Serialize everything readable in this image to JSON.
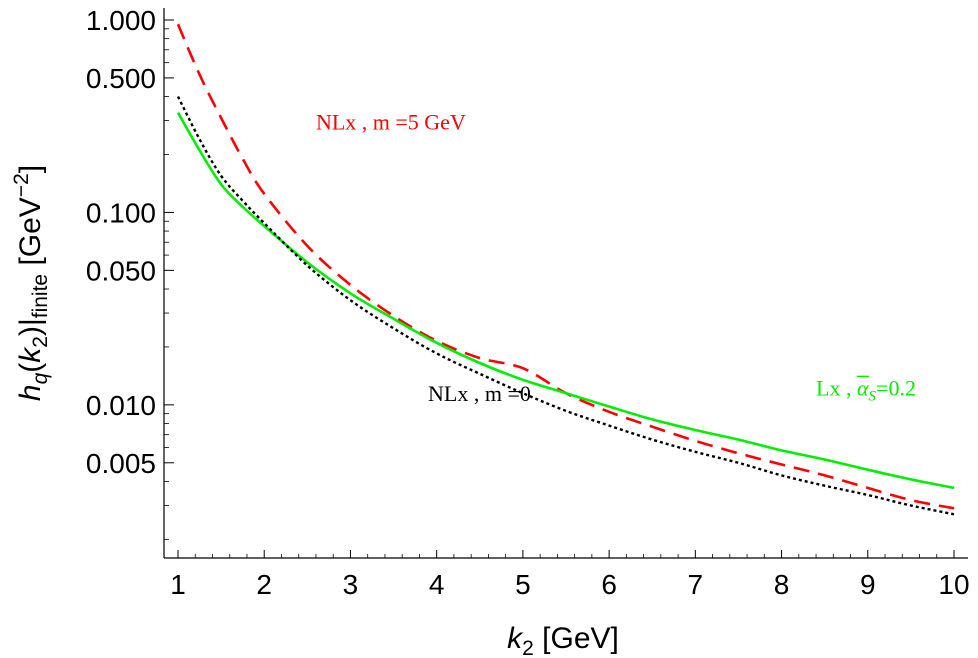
{
  "chart_data": {
    "type": "line",
    "title": "",
    "xlabel": {
      "var": "k",
      "sub": "2",
      "unit": " [GeV]"
    },
    "ylabel": {
      "var": "h",
      "sub_q": "q",
      "arg_var": "k",
      "arg_sub": "2",
      "finite_sub": "finite",
      "unit": " [GeV",
      "unit_exp": "−2",
      "unit_close": "]"
    },
    "x_range": [
      1,
      10
    ],
    "y_range": [
      0.0016,
      1.0
    ],
    "y_scale": "log",
    "grid": false,
    "x_ticks": [
      "1",
      "2",
      "3",
      "4",
      "5",
      "6",
      "7",
      "8",
      "9",
      "10"
    ],
    "y_ticks": [
      {
        "value": 1.0,
        "label": "1.000"
      },
      {
        "value": 0.5,
        "label": "0.500"
      },
      {
        "value": 0.1,
        "label": "0.100"
      },
      {
        "value": 0.05,
        "label": "0.050"
      },
      {
        "value": 0.01,
        "label": "0.010"
      },
      {
        "value": 0.005,
        "label": "0.005"
      }
    ],
    "x": [
      1,
      1.25,
      1.5,
      1.75,
      2,
      2.5,
      3,
      3.5,
      4,
      4.5,
      5,
      5.5,
      6,
      6.5,
      7,
      7.5,
      8,
      8.5,
      9,
      9.5,
      10
    ],
    "series": [
      {
        "color": "#ff0000",
        "style": "dashed",
        "values": [
          0.95,
          0.52,
          0.31,
          0.19,
          0.125,
          0.067,
          0.042,
          0.029,
          0.0215,
          0.0175,
          0.0155,
          0.0115,
          0.0092,
          0.0077,
          0.0065,
          0.0056,
          0.0049,
          0.0043,
          0.0037,
          0.0032,
          0.0029
        ]
      },
      {
        "color": "#00ee00",
        "style": "solid",
        "values": [
          0.33,
          0.21,
          0.14,
          0.107,
          0.085,
          0.055,
          0.038,
          0.028,
          0.021,
          0.0165,
          0.0135,
          0.0115,
          0.0098,
          0.0084,
          0.0074,
          0.0066,
          0.0058,
          0.0052,
          0.0046,
          0.0041,
          0.0037
        ]
      },
      {
        "color": "#000000",
        "style": "dotted",
        "values": [
          0.4,
          0.24,
          0.155,
          0.115,
          0.088,
          0.053,
          0.035,
          0.025,
          0.0185,
          0.0145,
          0.0115,
          0.0093,
          0.0078,
          0.0066,
          0.0057,
          0.005,
          0.0043,
          0.0038,
          0.0034,
          0.003,
          0.0027
        ]
      }
    ],
    "annotations": [
      {
        "text": "NLx , m =5 GeV",
        "color": "#ff0000",
        "x": 2.6,
        "y": 0.27
      },
      {
        "text": "NLx , m =0",
        "color": "#000000",
        "x": 3.9,
        "y": 0.0105
      },
      {
        "text_pre": "Lx , ",
        "alpha": "α",
        "alpha_sub": "S",
        "text_post": "=0.2",
        "color": "#00ee00",
        "x": 8.4,
        "y": 0.0112
      }
    ]
  }
}
